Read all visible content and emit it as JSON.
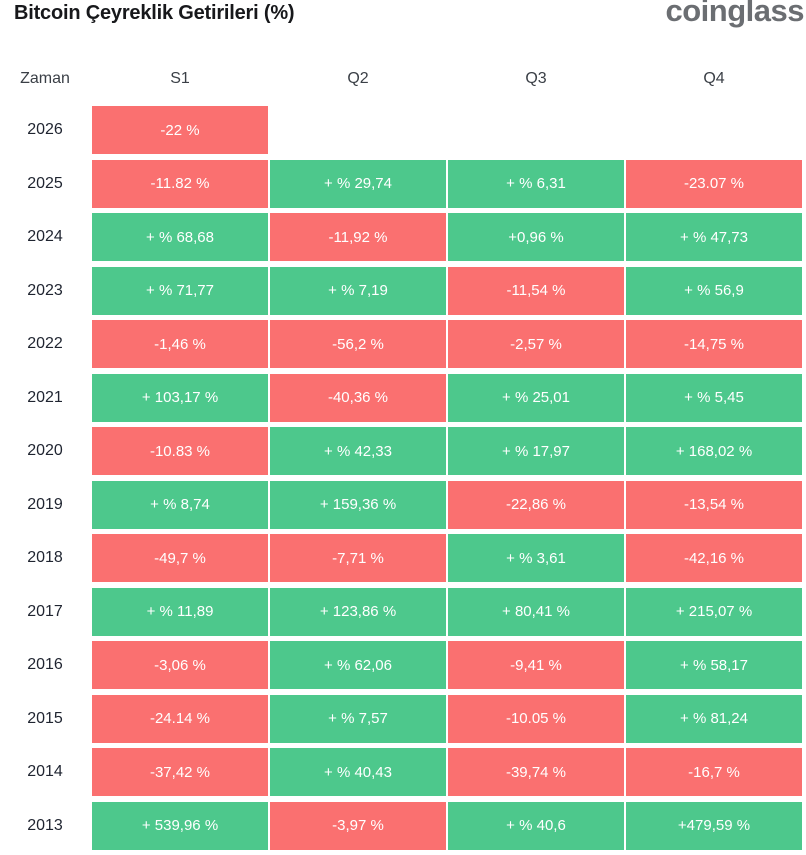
{
  "page": {
    "title": "Bitcoin Çeyreklik Getirileri (%)",
    "logo_text": "coinglass"
  },
  "colors": {
    "positive": "#4dc88c",
    "negative": "#fa7070",
    "title_text": "#17181b",
    "logo_text": "#6b6e72",
    "cell_text": "#ffffff"
  },
  "table": {
    "headers": [
      "Zaman",
      "S1",
      "Q2",
      "Q3",
      "Q4"
    ],
    "rows": [
      {
        "year": "2026",
        "cells": [
          {
            "text": "-22 %",
            "sign": "neg"
          },
          null,
          null,
          null
        ]
      },
      {
        "year": "2025",
        "cells": [
          {
            "text": "-11.82 %",
            "sign": "neg"
          },
          {
            "text": "+ % 29,74",
            "sign": "pos"
          },
          {
            "text": "+ % 6,31",
            "sign": "pos"
          },
          {
            "text": "-23.07 %",
            "sign": "neg"
          }
        ]
      },
      {
        "year": "2024",
        "cells": [
          {
            "text": "+ % 68,68",
            "sign": "pos"
          },
          {
            "text": "-11,92 %",
            "sign": "neg"
          },
          {
            "text": "+0,96 %",
            "sign": "pos"
          },
          {
            "text": "+ % 47,73",
            "sign": "pos"
          }
        ]
      },
      {
        "year": "2023",
        "cells": [
          {
            "text": "+ % 71,77",
            "sign": "pos"
          },
          {
            "text": "+ % 7,19",
            "sign": "pos"
          },
          {
            "text": "-11,54 %",
            "sign": "neg"
          },
          {
            "text": "+ % 56,9",
            "sign": "pos"
          }
        ]
      },
      {
        "year": "2022",
        "cells": [
          {
            "text": "-1,46 %",
            "sign": "neg"
          },
          {
            "text": "-56,2 %",
            "sign": "neg"
          },
          {
            "text": "-2,57 %",
            "sign": "neg"
          },
          {
            "text": "-14,75 %",
            "sign": "neg"
          }
        ]
      },
      {
        "year": "2021",
        "cells": [
          {
            "text": "+ 103,17 %",
            "sign": "pos"
          },
          {
            "text": "-40,36 %",
            "sign": "neg"
          },
          {
            "text": "+ % 25,01",
            "sign": "pos"
          },
          {
            "text": "+ % 5,45",
            "sign": "pos"
          }
        ]
      },
      {
        "year": "2020",
        "cells": [
          {
            "text": "-10.83 %",
            "sign": "neg"
          },
          {
            "text": "+ % 42,33",
            "sign": "pos"
          },
          {
            "text": "+ % 17,97",
            "sign": "pos"
          },
          {
            "text": "+ 168,02 %",
            "sign": "pos"
          }
        ]
      },
      {
        "year": "2019",
        "cells": [
          {
            "text": "+ % 8,74",
            "sign": "pos"
          },
          {
            "text": "+ 159,36 %",
            "sign": "pos"
          },
          {
            "text": "-22,86 %",
            "sign": "neg"
          },
          {
            "text": "-13,54 %",
            "sign": "neg"
          }
        ]
      },
      {
        "year": "2018",
        "cells": [
          {
            "text": "-49,7 %",
            "sign": "neg"
          },
          {
            "text": "-7,71 %",
            "sign": "neg"
          },
          {
            "text": "+ % 3,61",
            "sign": "pos"
          },
          {
            "text": "-42,16 %",
            "sign": "neg"
          }
        ]
      },
      {
        "year": "2017",
        "cells": [
          {
            "text": "+ % 11,89",
            "sign": "pos"
          },
          {
            "text": "+ 123,86 %",
            "sign": "pos"
          },
          {
            "text": "+ 80,41 %",
            "sign": "pos"
          },
          {
            "text": "+ 215,07 %",
            "sign": "pos"
          }
        ]
      },
      {
        "year": "2016",
        "cells": [
          {
            "text": "-3,06 %",
            "sign": "neg"
          },
          {
            "text": "+ % 62,06",
            "sign": "pos"
          },
          {
            "text": "-9,41 %",
            "sign": "neg"
          },
          {
            "text": "+ % 58,17",
            "sign": "pos"
          }
        ]
      },
      {
        "year": "2015",
        "cells": [
          {
            "text": "-24.14 %",
            "sign": "neg"
          },
          {
            "text": "+ % 7,57",
            "sign": "pos"
          },
          {
            "text": "-10.05 %",
            "sign": "neg"
          },
          {
            "text": "+ % 81,24",
            "sign": "pos"
          }
        ]
      },
      {
        "year": "2014",
        "cells": [
          {
            "text": "-37,42 %",
            "sign": "neg"
          },
          {
            "text": "+ % 40,43",
            "sign": "pos"
          },
          {
            "text": "-39,74 %",
            "sign": "neg"
          },
          {
            "text": "-16,7 %",
            "sign": "neg"
          }
        ]
      },
      {
        "year": "2013",
        "cells": [
          {
            "text": "+ 539,96 %",
            "sign": "pos"
          },
          {
            "text": "-3,97 %",
            "sign": "neg"
          },
          {
            "text": "+ % 40,6",
            "sign": "pos"
          },
          {
            "text": "+479,59 %",
            "sign": "pos"
          }
        ]
      }
    ]
  },
  "chart_data": {
    "type": "heatmap",
    "title": "Bitcoin Çeyreklik Getirileri (%)",
    "source_logo": "coinglass",
    "columns": [
      "S1",
      "Q2",
      "Q3",
      "Q4"
    ],
    "years": [
      2026,
      2025,
      2024,
      2023,
      2022,
      2021,
      2020,
      2019,
      2018,
      2017,
      2016,
      2015,
      2014,
      2013
    ],
    "values_pct": [
      [
        -22,
        null,
        null,
        null
      ],
      [
        -11.82,
        29.74,
        6.31,
        -23.07
      ],
      [
        68.68,
        -11.92,
        0.96,
        47.73
      ],
      [
        71.77,
        7.19,
        -11.54,
        56.9
      ],
      [
        -1.46,
        -56.2,
        -2.57,
        -14.75
      ],
      [
        103.17,
        -40.36,
        25.01,
        5.45
      ],
      [
        -10.83,
        42.33,
        17.97,
        168.02
      ],
      [
        8.74,
        159.36,
        -22.86,
        -13.54
      ],
      [
        -49.7,
        -7.71,
        3.61,
        -42.16
      ],
      [
        11.89,
        123.86,
        80.41,
        215.07
      ],
      [
        -3.06,
        62.06,
        -9.41,
        58.17
      ],
      [
        -24.14,
        7.57,
        -10.05,
        81.24
      ],
      [
        -37.42,
        40.43,
        -39.74,
        -16.7
      ],
      [
        539.96,
        -3.97,
        40.6,
        479.59
      ]
    ],
    "legend": "green = positive return, red = negative return",
    "layout": {
      "grid": false,
      "value_labels_inside_cells": true
    }
  }
}
